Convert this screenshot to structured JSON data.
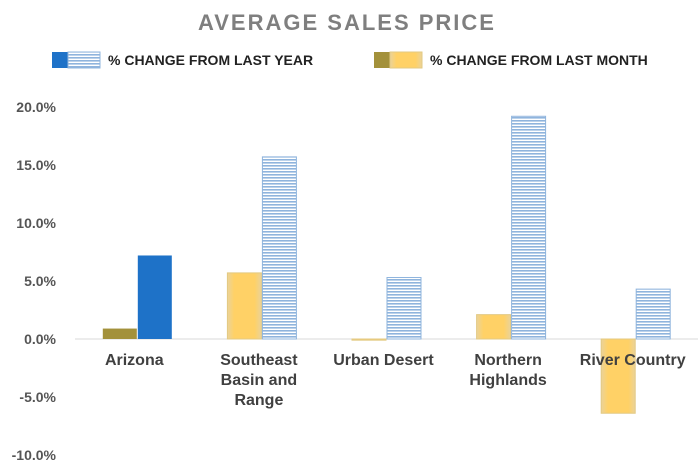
{
  "colors": {
    "year_solid": "#1e72c8",
    "year_hatch_stroke": "#8fb4dd",
    "month_solid": "#a3913b",
    "month_fill": "#ffd166",
    "month_edge": "#e3c982",
    "title": "#7f7f7f",
    "axis": "#d9d9d9"
  },
  "chart_data": {
    "type": "bar",
    "title": "AVERAGE SALES PRICE",
    "categories": [
      [
        "Arizona"
      ],
      [
        "Southeast",
        "Basin and",
        "Range"
      ],
      [
        "Urban Desert"
      ],
      [
        "Northern",
        "Highlands"
      ],
      [
        "River Country"
      ]
    ],
    "series": [
      {
        "name": "% CHANGE FROM LAST MONTH",
        "values": [
          0.9,
          5.7,
          -0.1,
          2.1,
          -6.4
        ],
        "style": "month"
      },
      {
        "name": "% CHANGE FROM LAST YEAR",
        "values": [
          7.2,
          15.7,
          5.3,
          19.2,
          4.3
        ],
        "style": "year"
      }
    ],
    "highlight_category_index": 0,
    "ylim": [
      -10,
      20
    ],
    "yticks": [
      "-10.0%",
      "-5.0%",
      "0.0%",
      "5.0%",
      "10.0%",
      "15.0%",
      "20.0%"
    ],
    "ytick_values": [
      -10,
      -5,
      0,
      5,
      10,
      15,
      20
    ],
    "legend_order": [
      1,
      0
    ],
    "legend_position": "top",
    "grid": false
  }
}
